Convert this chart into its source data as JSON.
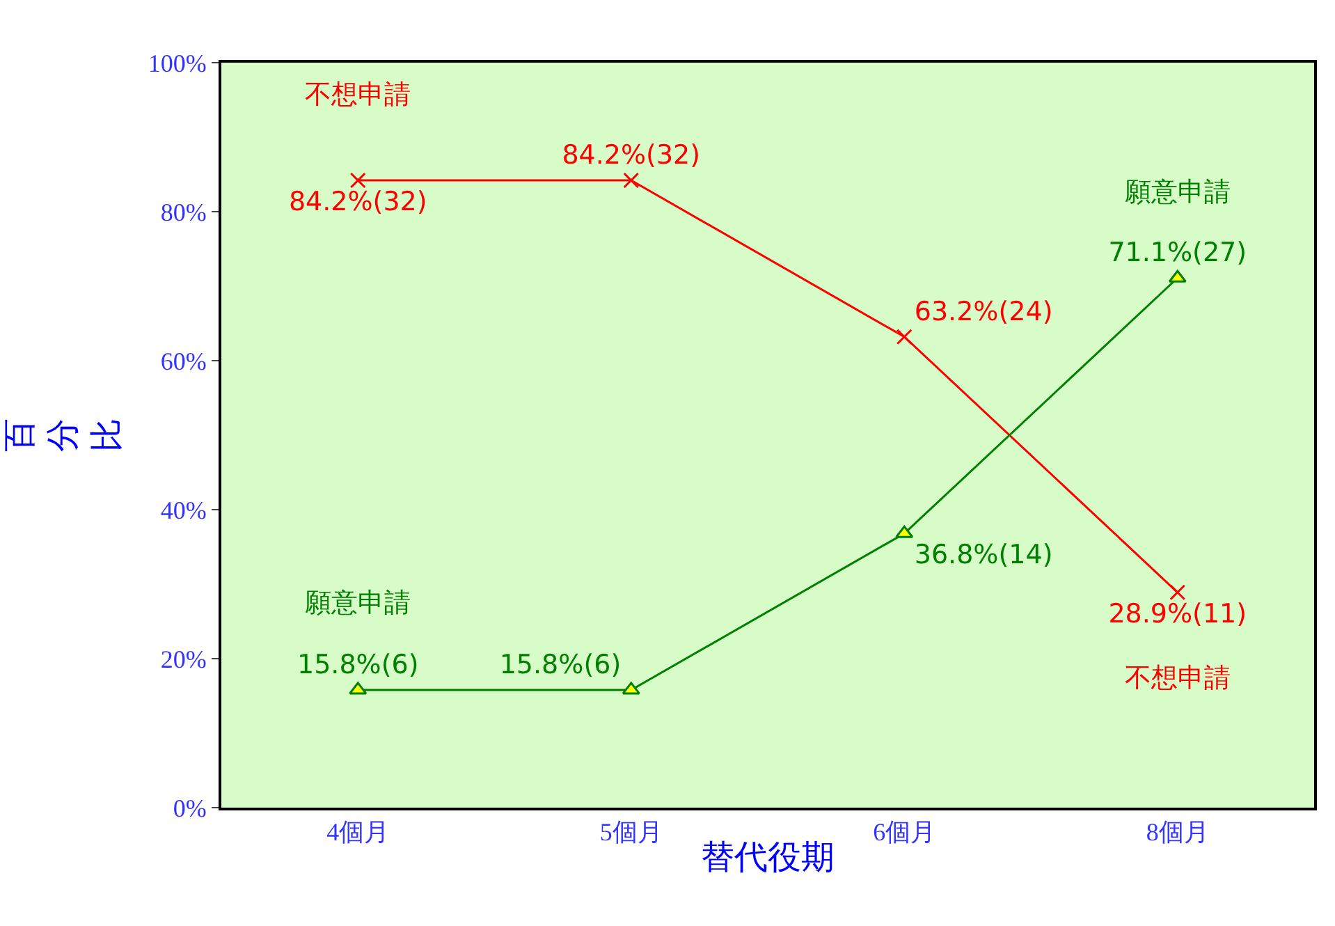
{
  "chart_data": {
    "type": "line",
    "xlabel": "替代役期",
    "ylabel": "百分比",
    "categories": [
      "4個月",
      "5個月",
      "6個月",
      "8個月"
    ],
    "series": [
      {
        "name": "不想申請",
        "color": "#ff0000",
        "marker": "cross",
        "values": [
          84.2,
          84.2,
          63.2,
          28.9
        ],
        "value_labels": [
          "84.2%(32)",
          "84.2%(32)",
          "63.2%(24)",
          "28.9%(11)"
        ]
      },
      {
        "name": "願意申請",
        "color": "#008000",
        "marker": "triangle",
        "values": [
          15.8,
          15.8,
          36.8,
          71.1
        ],
        "value_labels": [
          "15.8%(6)",
          "15.8%(6)",
          "36.8%(14)",
          "71.1%(27)"
        ]
      }
    ],
    "ylim": [
      0,
      100
    ],
    "yticks": [
      {
        "value": 0,
        "label": "0%"
      },
      {
        "value": 20,
        "label": "20%"
      },
      {
        "value": 40,
        "label": "40%"
      },
      {
        "value": 60,
        "label": "60%"
      },
      {
        "value": 80,
        "label": "80%"
      },
      {
        "value": 100,
        "label": "100%"
      }
    ],
    "grid": false,
    "legend": false
  }
}
